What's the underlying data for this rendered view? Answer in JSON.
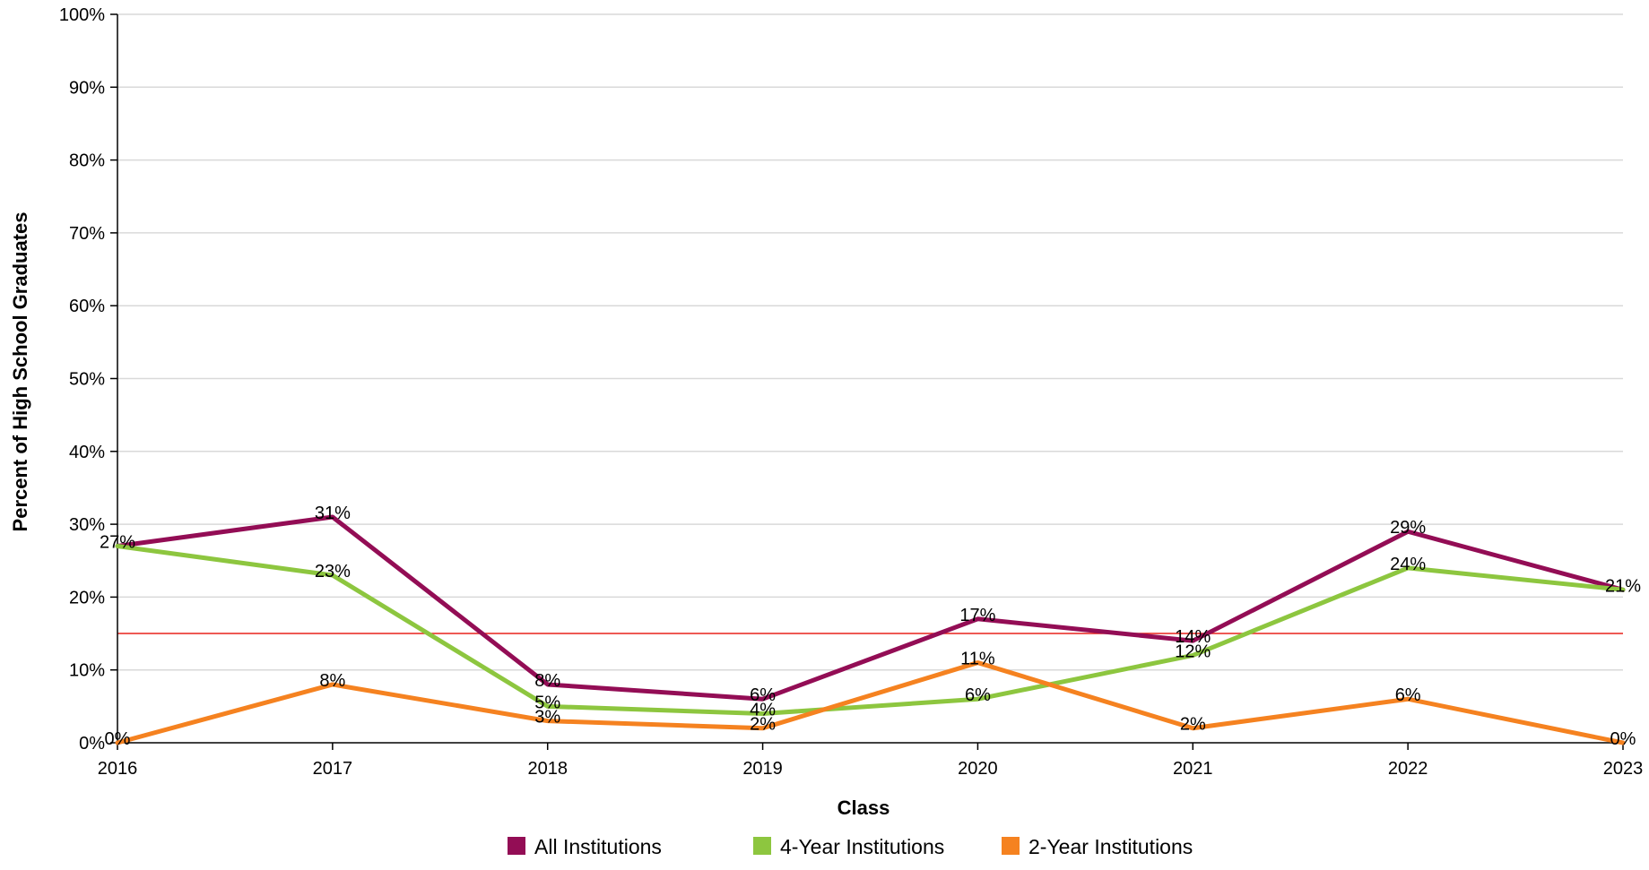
{
  "chart_data": {
    "type": "line",
    "title": "",
    "xlabel": "Class",
    "ylabel": "Percent of High School Graduates",
    "categories": [
      "2016",
      "2017",
      "2018",
      "2019",
      "2020",
      "2021",
      "2022",
      "2023"
    ],
    "ylim": [
      0,
      100
    ],
    "y_ticks": [
      "0%",
      "10%",
      "20%",
      "30%",
      "40%",
      "50%",
      "60%",
      "70%",
      "80%",
      "90%",
      "100%"
    ],
    "grid": true,
    "legend_position": "bottom",
    "series": [
      {
        "name": "All Institutions",
        "color": "#930d55",
        "values": [
          27,
          31,
          8,
          6,
          17,
          14,
          29,
          21
        ],
        "labels": [
          "27%",
          "31%",
          "8%",
          "6%",
          "17%",
          "14%",
          "29%",
          "21%"
        ]
      },
      {
        "name": "4-Year Institutions",
        "color": "#8dc63f",
        "values": [
          27,
          23,
          5,
          4,
          6,
          12,
          24,
          21
        ],
        "labels": [
          "",
          "23%",
          "5%",
          "4%",
          "6%",
          "12%",
          "24%",
          ""
        ]
      },
      {
        "name": "2-Year Institutions",
        "color": "#f58220",
        "values": [
          0,
          8,
          3,
          2,
          11,
          2,
          6,
          0
        ],
        "labels": [
          "0%",
          "8%",
          "3%",
          "2%",
          "11%",
          "2%",
          "6%",
          "0%"
        ]
      }
    ],
    "reference_line": {
      "value": 15,
      "color": "#e8221b"
    }
  }
}
